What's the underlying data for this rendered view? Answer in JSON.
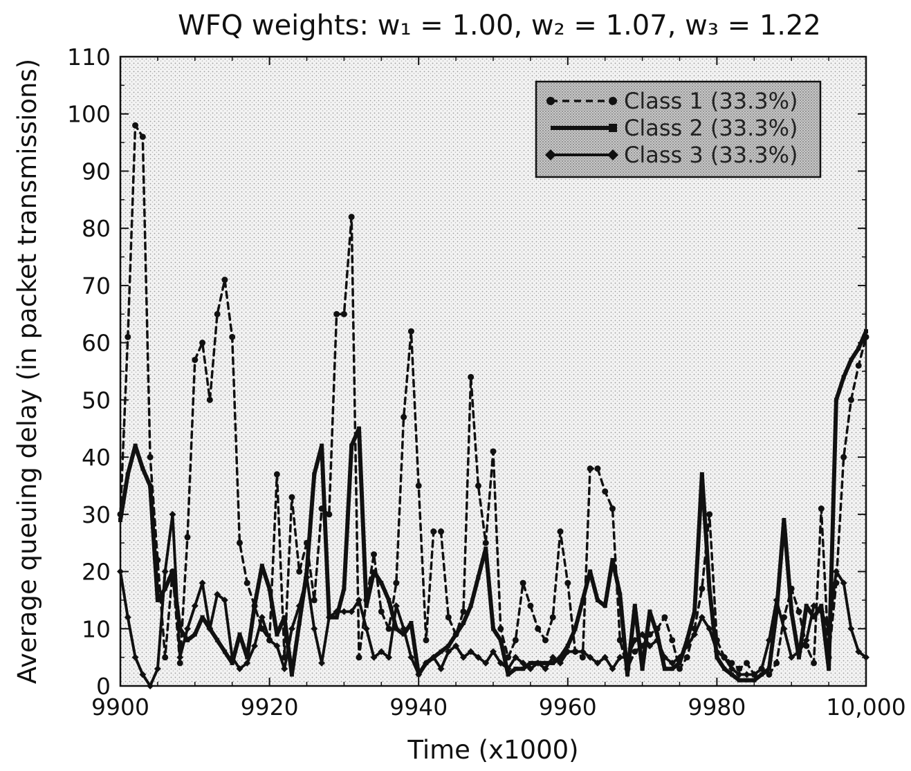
{
  "title": "WFQ weights: w₁ = 1.00, w₂ = 1.07, w₃ = 1.22",
  "chart_data": {
    "type": "line",
    "title": "WFQ weights: w₁ = 1.00, w₂ = 1.07, w₃ = 1.22",
    "xlabel": "Time (x1000)",
    "ylabel": "Average queuing delay (in packet transmissions)",
    "xlim": [
      9900,
      10000
    ],
    "ylim": [
      0,
      110
    ],
    "xticks": [
      9900,
      9920,
      9940,
      9960,
      9980,
      10000
    ],
    "xtick_labels": [
      "9900",
      "9920",
      "9940",
      "9960",
      "9980",
      "10,000"
    ],
    "yticks": [
      0,
      10,
      20,
      30,
      40,
      50,
      60,
      70,
      80,
      90,
      100,
      110
    ],
    "ytick_labels": [
      "0",
      "10",
      "20",
      "30",
      "40",
      "50",
      "60",
      "70",
      "80",
      "90",
      "100",
      "110"
    ],
    "grid": false,
    "legend_position": "top-right",
    "series": [
      {
        "name": "Class 1 (33.3%)",
        "style": "dashed",
        "x": [
          9900,
          9901,
          9902,
          9903,
          9904,
          9905,
          9906,
          9907,
          9908,
          9909,
          9910,
          9911,
          9912,
          9913,
          9914,
          9915,
          9916,
          9917,
          9918,
          9919,
          9920,
          9921,
          9922,
          9923,
          9924,
          9925,
          9926,
          9927,
          9928,
          9929,
          9930,
          9931,
          9932,
          9933,
          9934,
          9935,
          9936,
          9937,
          9938,
          9939,
          9940,
          9941,
          9942,
          9943,
          9944,
          9945,
          9946,
          9947,
          9948,
          9949,
          9950,
          9951,
          9952,
          9953,
          9954,
          9955,
          9956,
          9957,
          9958,
          9959,
          9960,
          9961,
          9962,
          9963,
          9964,
          9965,
          9966,
          9967,
          9968,
          9969,
          9970,
          9971,
          9972,
          9973,
          9974,
          9975,
          9976,
          9977,
          9978,
          9979,
          9980,
          9981,
          9982,
          9983,
          9984,
          9985,
          9986,
          9987,
          9988,
          9989,
          9990,
          9991,
          9992,
          9993,
          9994,
          9995,
          9996,
          9997,
          9998,
          9999,
          10000
        ],
        "values": [
          30,
          61,
          98,
          96,
          40,
          22,
          5,
          20,
          4,
          26,
          57,
          60,
          50,
          65,
          71,
          61,
          25,
          18,
          14,
          10,
          8,
          37,
          5,
          33,
          20,
          25,
          15,
          31,
          30,
          65,
          65,
          82,
          5,
          15,
          23,
          13,
          10,
          18,
          47,
          62,
          35,
          8,
          27,
          27,
          12,
          9,
          13,
          54,
          35,
          25,
          41,
          10,
          5,
          8,
          18,
          14,
          10,
          8,
          12,
          27,
          18,
          6,
          5,
          38,
          38,
          34,
          31,
          8,
          3,
          6,
          7,
          9,
          10,
          12,
          8,
          3,
          5,
          10,
          17,
          30,
          8,
          5,
          4,
          3,
          4,
          2,
          3,
          2,
          4,
          12,
          17,
          13,
          7,
          4,
          31,
          5,
          18,
          40,
          50,
          56,
          61
        ]
      },
      {
        "name": "Class 2 (33.3%)",
        "style": "solid",
        "x": [
          9900,
          9901,
          9902,
          9903,
          9904,
          9905,
          9906,
          9907,
          9908,
          9909,
          9910,
          9911,
          9912,
          9913,
          9914,
          9915,
          9916,
          9917,
          9918,
          9919,
          9920,
          9921,
          9922,
          9923,
          9924,
          9925,
          9926,
          9927,
          9928,
          9929,
          9930,
          9931,
          9932,
          9933,
          9934,
          9935,
          9936,
          9937,
          9938,
          9939,
          9940,
          9941,
          9942,
          9943,
          9944,
          9945,
          9946,
          9947,
          9948,
          9949,
          9950,
          9951,
          9952,
          9953,
          9954,
          9955,
          9956,
          9957,
          9958,
          9959,
          9960,
          9961,
          9962,
          9963,
          9964,
          9965,
          9966,
          9967,
          9968,
          9969,
          9970,
          9971,
          9972,
          9973,
          9974,
          9975,
          9976,
          9977,
          9978,
          9979,
          9980,
          9981,
          9982,
          9983,
          9984,
          9985,
          9986,
          9987,
          9988,
          9989,
          9990,
          9991,
          9992,
          9993,
          9994,
          9995,
          9996,
          9997,
          9998,
          9999,
          10000
        ],
        "values": [
          29,
          37,
          42,
          38,
          35,
          15,
          17,
          20,
          10,
          8,
          9,
          12,
          10,
          8,
          6,
          4,
          9,
          5,
          14,
          21,
          17,
          9,
          12,
          2,
          11,
          20,
          37,
          42,
          12,
          12,
          17,
          42,
          45,
          14,
          20,
          18,
          15,
          10,
          9,
          11,
          2,
          4,
          5,
          6,
          7,
          9,
          11,
          14,
          19,
          24,
          10,
          8,
          2,
          3,
          3,
          4,
          4,
          4,
          4,
          5,
          7,
          10,
          15,
          20,
          15,
          14,
          22,
          16,
          2,
          14,
          3,
          13,
          9,
          3,
          3,
          4,
          8,
          13,
          37,
          17,
          5,
          3,
          2,
          1,
          1,
          1,
          2,
          3,
          13,
          29,
          13,
          5,
          14,
          12,
          14,
          3,
          50,
          54,
          57,
          59,
          62
        ]
      },
      {
        "name": "Class 3 (33.3%)",
        "style": "solid",
        "x": [
          9900,
          9901,
          9902,
          9903,
          9904,
          9905,
          9906,
          9907,
          9908,
          9909,
          9910,
          9911,
          9912,
          9913,
          9914,
          9915,
          9916,
          9917,
          9918,
          9919,
          9920,
          9921,
          9922,
          9923,
          9924,
          9925,
          9926,
          9927,
          9928,
          9929,
          9930,
          9931,
          9932,
          9933,
          9934,
          9935,
          9936,
          9937,
          9938,
          9939,
          9940,
          9941,
          9942,
          9943,
          9944,
          9945,
          9946,
          9947,
          9948,
          9949,
          9950,
          9951,
          9952,
          9953,
          9954,
          9955,
          9956,
          9957,
          9958,
          9959,
          9960,
          9961,
          9962,
          9963,
          9964,
          9965,
          9966,
          9967,
          9968,
          9969,
          9970,
          9971,
          9972,
          9973,
          9974,
          9975,
          9976,
          9977,
          9978,
          9979,
          9980,
          9981,
          9982,
          9983,
          9984,
          9985,
          9986,
          9987,
          9988,
          9989,
          9990,
          9991,
          9992,
          9993,
          9994,
          9995,
          9996,
          9997,
          9998,
          9999,
          10000
        ],
        "values": [
          20,
          12,
          5,
          2,
          0,
          3,
          20,
          30,
          5,
          10,
          14,
          18,
          10,
          16,
          15,
          5,
          3,
          4,
          7,
          12,
          8,
          7,
          3,
          10,
          14,
          19,
          10,
          4,
          12,
          13,
          13,
          13,
          15,
          10,
          5,
          6,
          5,
          14,
          10,
          5,
          2,
          4,
          5,
          3,
          6,
          7,
          5,
          6,
          5,
          4,
          6,
          4,
          3,
          5,
          4,
          3,
          4,
          3,
          5,
          4,
          6,
          6,
          6,
          5,
          4,
          5,
          3,
          5,
          5,
          8,
          9,
          7,
          8,
          5,
          4,
          5,
          7,
          9,
          12,
          10,
          6,
          5,
          3,
          2,
          2,
          2,
          3,
          8,
          15,
          10,
          5,
          6,
          8,
          14,
          13,
          10,
          20,
          18,
          10,
          6,
          5
        ]
      }
    ]
  }
}
